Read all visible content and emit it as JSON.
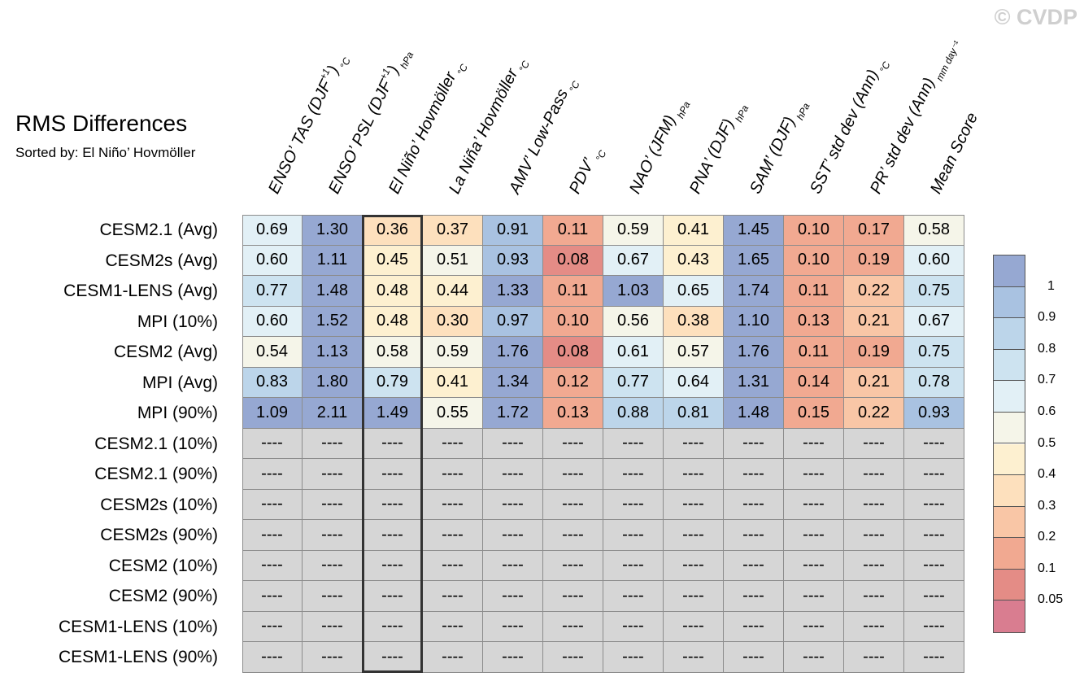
{
  "watermark": "© CVDP",
  "chart_data": {
    "type": "heatmap",
    "title": "RMS Differences",
    "subtitle": "Sorted by: El Niño’ Hovmöller",
    "columns": [
      {
        "name": "ENSO’ TAS (DJF",
        "sup": "+1",
        "close": ")",
        "unit": "°C"
      },
      {
        "name": "ENSO’ PSL (DJF",
        "sup": "+1",
        "close": ")",
        "unit": "hPa"
      },
      {
        "name": "El Niño’ Hovmöller",
        "sup": "",
        "close": "",
        "unit": "°C"
      },
      {
        "name": "La Niña’ Hovmöller",
        "sup": "",
        "close": "",
        "unit": "°C"
      },
      {
        "name": "AMV’ Low-Pass",
        "sup": "",
        "close": "",
        "unit": "°C"
      },
      {
        "name": "PDV’",
        "sup": "",
        "close": "",
        "unit": "°C"
      },
      {
        "name": "NAO’ (JFM)",
        "sup": "",
        "close": "",
        "unit": "hPa"
      },
      {
        "name": "PNA’ (DJF)",
        "sup": "",
        "close": "",
        "unit": "hPa"
      },
      {
        "name": "SAM’ (DJF)",
        "sup": "",
        "close": "",
        "unit": "hPa"
      },
      {
        "name": "SST’ std dev (Ann)",
        "sup": "",
        "close": "",
        "unit": "°C"
      },
      {
        "name": "PR’ std dev (Ann)",
        "sup": "",
        "close": "",
        "unit": "mm day⁻¹"
      },
      {
        "name": "Mean Score",
        "sup": "",
        "close": "",
        "unit": ""
      }
    ],
    "rows": [
      {
        "label": "CESM2.1 (Avg)",
        "values": [
          "0.69",
          "1.30",
          "0.36",
          "0.37",
          "0.91",
          "0.11",
          "0.59",
          "0.41",
          "1.45",
          "0.10",
          "0.17",
          "0.58"
        ]
      },
      {
        "label": "CESM2s (Avg)",
        "values": [
          "0.60",
          "1.11",
          "0.45",
          "0.51",
          "0.93",
          "0.08",
          "0.67",
          "0.43",
          "1.65",
          "0.10",
          "0.19",
          "0.60"
        ]
      },
      {
        "label": "CESM1-LENS (Avg)",
        "values": [
          "0.77",
          "1.48",
          "0.48",
          "0.44",
          "1.33",
          "0.11",
          "1.03",
          "0.65",
          "1.74",
          "0.11",
          "0.22",
          "0.75"
        ]
      },
      {
        "label": "MPI (10%)",
        "values": [
          "0.60",
          "1.52",
          "0.48",
          "0.30",
          "0.97",
          "0.10",
          "0.56",
          "0.38",
          "1.10",
          "0.13",
          "0.21",
          "0.67"
        ]
      },
      {
        "label": "CESM2 (Avg)",
        "values": [
          "0.54",
          "1.13",
          "0.58",
          "0.59",
          "1.76",
          "0.08",
          "0.61",
          "0.57",
          "1.76",
          "0.11",
          "0.19",
          "0.75"
        ]
      },
      {
        "label": "MPI (Avg)",
        "values": [
          "0.83",
          "1.80",
          "0.79",
          "0.41",
          "1.34",
          "0.12",
          "0.77",
          "0.64",
          "1.31",
          "0.14",
          "0.21",
          "0.78"
        ]
      },
      {
        "label": "MPI (90%)",
        "values": [
          "1.09",
          "2.11",
          "1.49",
          "0.55",
          "1.72",
          "0.13",
          "0.88",
          "0.81",
          "1.48",
          "0.15",
          "0.22",
          "0.93"
        ]
      },
      {
        "label": "CESM2.1 (10%)",
        "values": [
          "----",
          "----",
          "----",
          "----",
          "----",
          "----",
          "----",
          "----",
          "----",
          "----",
          "----",
          "----"
        ]
      },
      {
        "label": "CESM2.1 (90%)",
        "values": [
          "----",
          "----",
          "----",
          "----",
          "----",
          "----",
          "----",
          "----",
          "----",
          "----",
          "----",
          "----"
        ]
      },
      {
        "label": "CESM2s (10%)",
        "values": [
          "----",
          "----",
          "----",
          "----",
          "----",
          "----",
          "----",
          "----",
          "----",
          "----",
          "----",
          "----"
        ]
      },
      {
        "label": "CESM2s (90%)",
        "values": [
          "----",
          "----",
          "----",
          "----",
          "----",
          "----",
          "----",
          "----",
          "----",
          "----",
          "----",
          "----"
        ]
      },
      {
        "label": "CESM2 (10%)",
        "values": [
          "----",
          "----",
          "----",
          "----",
          "----",
          "----",
          "----",
          "----",
          "----",
          "----",
          "----",
          "----"
        ]
      },
      {
        "label": "CESM2 (90%)",
        "values": [
          "----",
          "----",
          "----",
          "----",
          "----",
          "----",
          "----",
          "----",
          "----",
          "----",
          "----",
          "----"
        ]
      },
      {
        "label": "CESM1-LENS (10%)",
        "values": [
          "----",
          "----",
          "----",
          "----",
          "----",
          "----",
          "----",
          "----",
          "----",
          "----",
          "----",
          "----"
        ]
      },
      {
        "label": "CESM1-LENS (90%)",
        "values": [
          "----",
          "----",
          "----",
          "----",
          "----",
          "----",
          "----",
          "----",
          "----",
          "----",
          "----",
          "----"
        ]
      }
    ],
    "highlighted_column": "El Niño’ Hovmöller",
    "missing_color": "#d6d6d6",
    "legend": {
      "position": "right",
      "labels": [
        "1",
        "0.9",
        "0.8",
        "0.7",
        "0.6",
        "0.5",
        "0.4",
        "0.3",
        "0.2",
        "0.1",
        "0.05"
      ],
      "bands": [
        {
          "max": 999,
          "min": 1.0,
          "color": "#96a8d2"
        },
        {
          "max": 1.0,
          "min": 0.9,
          "color": "#a9c2e1"
        },
        {
          "max": 0.9,
          "min": 0.8,
          "color": "#bcd5ea"
        },
        {
          "max": 0.8,
          "min": 0.7,
          "color": "#cde3f0"
        },
        {
          "max": 0.7,
          "min": 0.6,
          "color": "#e2f0f6"
        },
        {
          "max": 0.6,
          "min": 0.5,
          "color": "#f5f5e9"
        },
        {
          "max": 0.5,
          "min": 0.4,
          "color": "#fdf0d0"
        },
        {
          "max": 0.4,
          "min": 0.3,
          "color": "#fde0bd"
        },
        {
          "max": 0.3,
          "min": 0.2,
          "color": "#f9c6a6"
        },
        {
          "max": 0.2,
          "min": 0.1,
          "color": "#f1a991"
        },
        {
          "max": 0.1,
          "min": 0.05,
          "color": "#e48c86"
        },
        {
          "max": 0.05,
          "min": 0,
          "color": "#d97d90"
        }
      ]
    }
  }
}
